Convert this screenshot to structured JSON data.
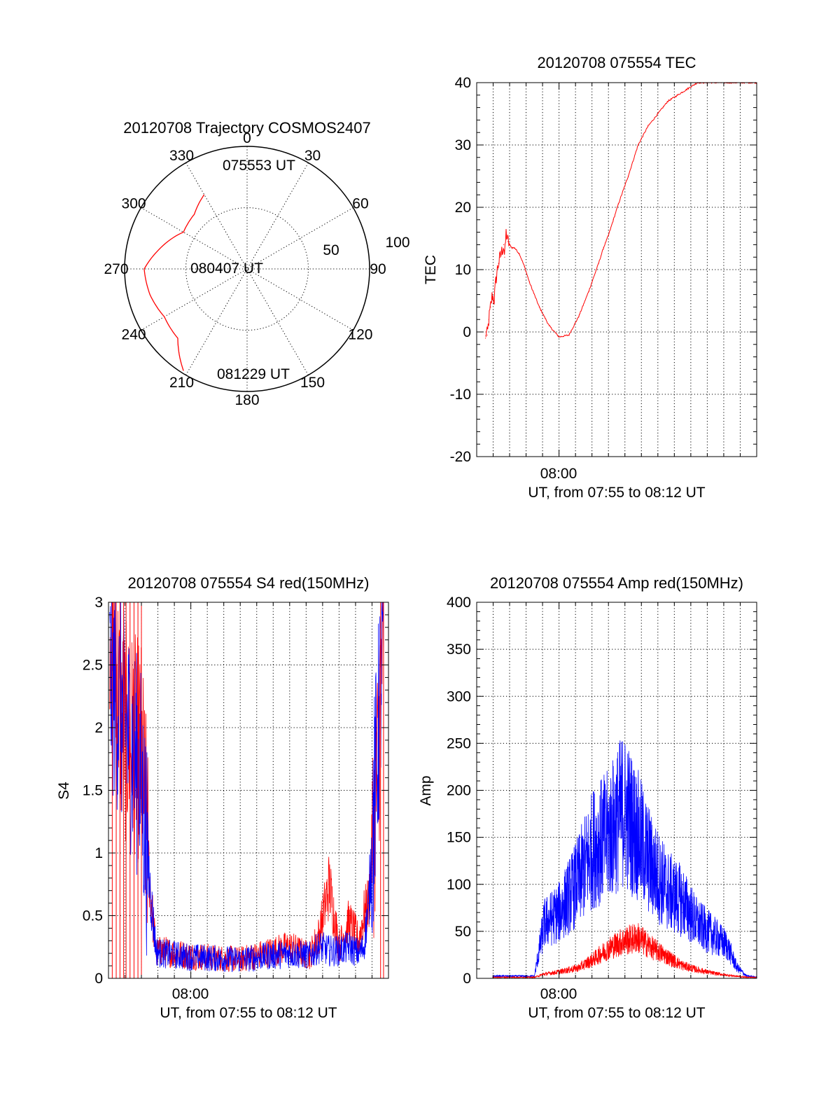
{
  "chart_data": [
    {
      "type": "polar",
      "title": "20120708 Trajectory COSMOS2407",
      "angle_labels": [
        "0",
        "30",
        "60",
        "90",
        "120",
        "150",
        "180",
        "210",
        "240",
        "270",
        "300",
        "330"
      ],
      "radius_labels": [
        "50",
        "100"
      ],
      "radius_max": 100,
      "series": [
        {
          "color": "#ff0000",
          "points": [
            {
              "az": 330,
              "r": 70
            },
            {
              "az": 316,
              "r": 62
            },
            {
              "az": 300,
              "r": 60
            },
            {
              "az": 282,
              "r": 74
            },
            {
              "az": 270,
              "r": 84
            },
            {
              "az": 255,
              "r": 82
            },
            {
              "az": 240,
              "r": 78
            },
            {
              "az": 225,
              "r": 80
            },
            {
              "az": 212,
              "r": 98
            }
          ]
        }
      ],
      "annotations": [
        "075553 UT",
        "080407 UT",
        "081229 UT"
      ]
    },
    {
      "type": "line",
      "title": "20120708 075554 TEC",
      "xlabel": "UT, from 07:55 to 08:12 UT",
      "ylabel": "TEC",
      "xlim": [
        7.9167,
        8.2
      ],
      "ylim": [
        -20,
        40
      ],
      "yticks": [
        "-20",
        "-10",
        "0",
        "10",
        "20",
        "30",
        "40"
      ],
      "xtick_label": "08:00",
      "series": [
        {
          "color": "#ff0000",
          "x": [
            7.9256,
            7.9263,
            7.9275,
            7.929,
            7.9308,
            7.9325,
            7.9343,
            7.936,
            7.9375,
            7.9388,
            7.9405,
            7.9423,
            7.944,
            7.945,
            7.9465,
            7.9483,
            7.95,
            7.9525,
            7.955,
            7.96,
            7.965,
            7.97,
            7.98,
            7.99,
            8.0,
            8.01,
            8.02,
            8.03,
            8.04,
            8.045,
            8.05,
            8.055,
            8.06,
            8.07,
            8.08,
            8.09,
            8.1,
            8.11,
            8.12,
            8.13,
            8.14,
            8.15,
            8.16,
            8.17,
            8.18,
            8.19,
            8.2
          ],
          "y": [
            -1,
            0,
            -0.5,
            2,
            4,
            6,
            5,
            8,
            10,
            11,
            12,
            13,
            14,
            12,
            16,
            14.5,
            14,
            13.5,
            13.5,
            12.5,
            10.5,
            8,
            4,
            1,
            -0.8,
            -0.5,
            2.5,
            6.5,
            11,
            13.5,
            15.5,
            18,
            20.5,
            25,
            30,
            33,
            35,
            37,
            38,
            39,
            40,
            40,
            40,
            40,
            40,
            40,
            40
          ]
        }
      ]
    },
    {
      "type": "line",
      "title": "20120708 075554 S4 red(150MHz)",
      "xlabel": "UT, from 07:55 to 08:12 UT",
      "ylabel": "S4",
      "xlim": [
        7.9167,
        8.2
      ],
      "ylim": [
        0,
        3
      ],
      "yticks": [
        "0",
        "0.5",
        "1",
        "1.5",
        "2",
        "2.5",
        "3"
      ],
      "xtick_label": "08:00",
      "series": [
        {
          "color": "#ff0000",
          "x": [
            7.918,
            7.93,
            7.95,
            7.96,
            7.965,
            7.97,
            8.0,
            8.05,
            8.1,
            8.12,
            8.13,
            8.14,
            8.15,
            8.16,
            8.17,
            8.175,
            8.18,
            8.19,
            8.195
          ],
          "y": [
            3,
            2,
            1.8,
            0.6,
            0.2,
            0.22,
            0.18,
            0.15,
            0.25,
            0.18,
            0.35,
            0.75,
            0.25,
            0.45,
            0.3,
            0.5,
            0.6,
            1.8,
            3
          ]
        },
        {
          "color": "#0000ff",
          "x": [
            7.918,
            7.93,
            7.95,
            7.96,
            7.965,
            7.97,
            8.0,
            8.05,
            8.1,
            8.12,
            8.13,
            8.14,
            8.15,
            8.16,
            8.17,
            8.175,
            8.18,
            8.19,
            8.195
          ],
          "y": [
            2.4,
            2.1,
            1.6,
            0.6,
            0.22,
            0.2,
            0.17,
            0.15,
            0.2,
            0.18,
            0.25,
            0.22,
            0.22,
            0.25,
            0.2,
            0.25,
            0.6,
            2.0,
            2.8
          ]
        }
      ]
    },
    {
      "type": "line",
      "title": "20120708 075554 Amp red(150MHz)",
      "xlabel": "UT, from 07:55 to 08:12 UT",
      "ylabel": "Amp",
      "xlim": [
        7.9167,
        8.2
      ],
      "ylim": [
        0,
        400
      ],
      "yticks": [
        "0",
        "50",
        "100",
        "150",
        "200",
        "250",
        "300",
        "350",
        "400"
      ],
      "xtick_label": "08:00",
      "series": [
        {
          "color": "#0000ff",
          "x": [
            7.933,
            7.95,
            7.975,
            7.985,
            8.0,
            8.02,
            8.035,
            8.05,
            8.065,
            8.08,
            8.095,
            8.11,
            8.125,
            8.14,
            8.155,
            8.17,
            8.18,
            8.19,
            8.2
          ],
          "y": [
            2,
            2,
            2,
            50,
            60,
            90,
            120,
            130,
            155,
            130,
            100,
            80,
            70,
            50,
            40,
            30,
            10,
            2,
            1
          ]
        },
        {
          "color": "#ff0000",
          "x": [
            7.933,
            7.95,
            7.975,
            7.985,
            8.0,
            8.02,
            8.035,
            8.05,
            8.065,
            8.08,
            8.095,
            8.11,
            8.125,
            8.14,
            8.155,
            8.17,
            8.18,
            8.19,
            8.2
          ],
          "y": [
            1,
            1,
            1,
            4,
            6,
            10,
            18,
            28,
            35,
            38,
            28,
            20,
            12,
            8,
            5,
            3,
            2,
            1,
            1
          ]
        }
      ]
    }
  ]
}
